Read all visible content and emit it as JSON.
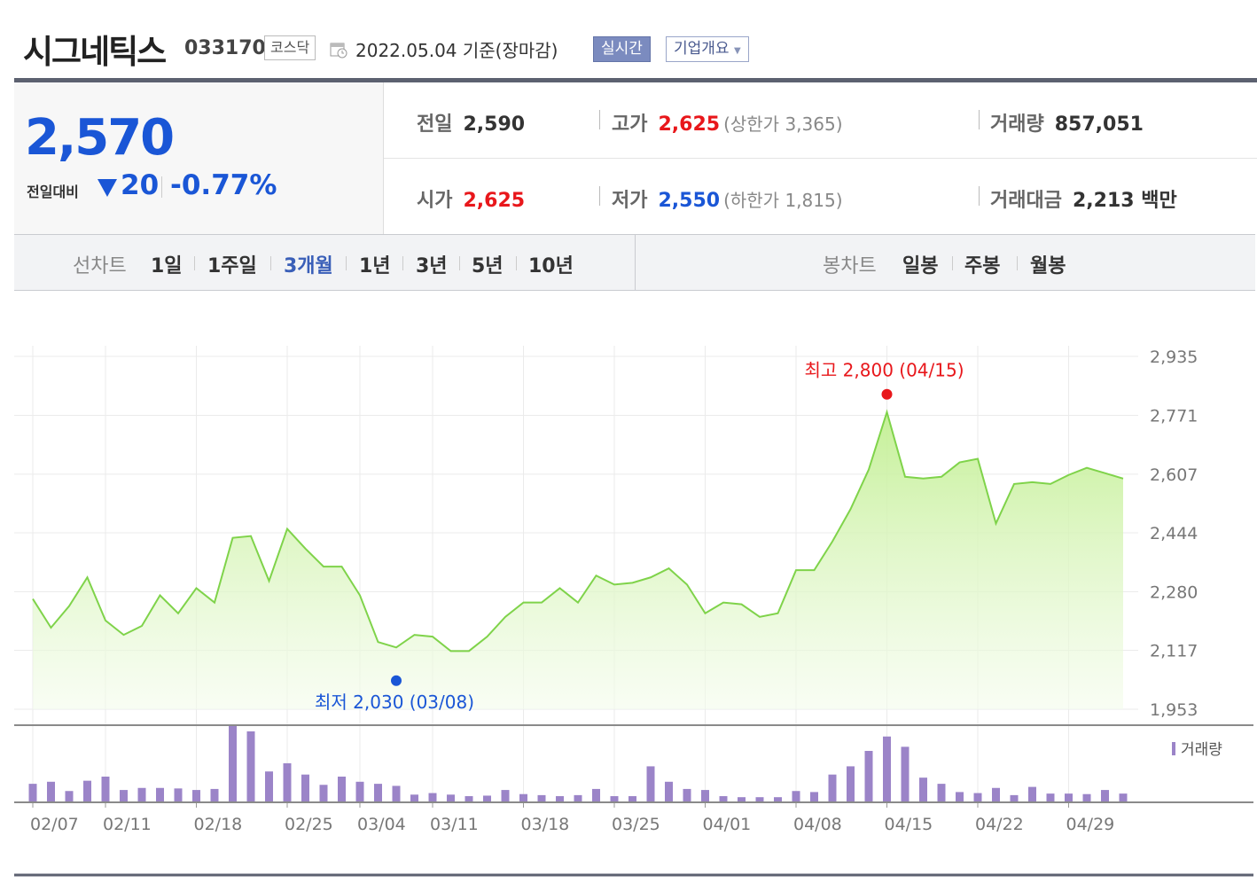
{
  "header": {
    "name": "시그네틱스",
    "code": "033170",
    "market": "코스닥",
    "date_text": "2022.05.04  기준(장마감)",
    "realtime": "실시간",
    "company": "기업개요"
  },
  "price": {
    "now": "2,570",
    "diff_label": "전일대비",
    "diff": "20",
    "pct": "-0.77%",
    "down_color": "#1a56d6",
    "up_color": "#e8171b"
  },
  "stats": {
    "prev_label": "전일",
    "prev": "2,590",
    "open_label": "시가",
    "open": "2,625",
    "high_label": "고가",
    "high": "2,625",
    "high_sub": "(상한가 3,365)",
    "low_label": "저가",
    "low": "2,550",
    "low_sub": "(하한가 1,815)",
    "vol_label": "거래량",
    "vol": "857,051",
    "amt_label": "거래대금",
    "amt": "2,213 백만"
  },
  "tabs": {
    "line_label": "선차트",
    "periods": [
      "1일",
      "1주일",
      "3개월",
      "1년",
      "3년",
      "5년",
      "10년"
    ],
    "active": "3개월",
    "candle_label": "봉차트",
    "candles": [
      "일봉",
      "주봉",
      "월봉"
    ]
  },
  "chart_data": {
    "type": "area",
    "line_color": "#7fd34a",
    "fill_top": "#c8f0a0",
    "volume_color": "#9b84c8",
    "ylim": [
      1953,
      2935
    ],
    "yticks": [
      2935,
      2771,
      2607,
      2444,
      2280,
      2117,
      1953
    ],
    "ytick_labels": [
      "2,935",
      "2,771",
      "2,607",
      "2,444",
      "2,280",
      "2,117",
      "1,953"
    ],
    "xtick_labels": [
      "02/07",
      "02/11",
      "02/18",
      "02/25",
      "03/04",
      "03/11",
      "03/18",
      "03/25",
      "04/01",
      "04/08",
      "04/15",
      "04/22",
      "04/29"
    ],
    "xtick_index": [
      0,
      4,
      9,
      14,
      18,
      22,
      27,
      32,
      37,
      42,
      47,
      52,
      57
    ],
    "close": [
      2260,
      2180,
      2240,
      2320,
      2200,
      2160,
      2185,
      2270,
      2220,
      2290,
      2250,
      2430,
      2435,
      2310,
      2455,
      2400,
      2350,
      2350,
      2270,
      2140,
      2125,
      2160,
      2155,
      2115,
      2115,
      2155,
      2210,
      2250,
      2250,
      2290,
      2250,
      2325,
      2300,
      2305,
      2320,
      2345,
      2300,
      2220,
      2250,
      2245,
      2210,
      2220,
      2340,
      2340,
      2420,
      2510,
      2620,
      2780,
      2600,
      2595,
      2600,
      2640,
      2650,
      2470,
      2580,
      2585,
      2580,
      2605,
      2625,
      2610,
      2595
    ],
    "volume": [
      180,
      200,
      110,
      210,
      250,
      120,
      140,
      140,
      135,
      120,
      130,
      750,
      690,
      300,
      380,
      270,
      170,
      250,
      200,
      180,
      160,
      75,
      90,
      75,
      60,
      65,
      120,
      80,
      70,
      60,
      70,
      130,
      60,
      60,
      350,
      200,
      130,
      120,
      60,
      50,
      50,
      50,
      110,
      100,
      270,
      350,
      500,
      640,
      540,
      240,
      180,
      100,
      90,
      140,
      70,
      150,
      85,
      85,
      80,
      120,
      85
    ],
    "max_label": "최고 2,800 (04/15)",
    "max_index": 47,
    "max_value": 2800,
    "min_label": "최저 2,030 (03/08)",
    "min_index": 20,
    "min_value": 2030,
    "volume_legend": "거래량"
  }
}
